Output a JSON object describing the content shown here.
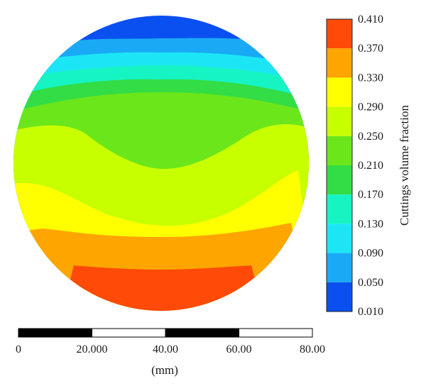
{
  "chart_data": {
    "type": "heatmap",
    "subtype": "circular-cross-section-contour",
    "title": "",
    "colorbar": {
      "label": "Cuttings volume fraction",
      "ticks": [
        "0.410",
        "0.370",
        "0.330",
        "0.290",
        "0.250",
        "0.210",
        "0.170",
        "0.130",
        "0.090",
        "0.050",
        "0.010"
      ],
      "colors": [
        "#ff4a08",
        "#ffa500",
        "#ffff00",
        "#c8ff00",
        "#6be61a",
        "#32dd45",
        "#16f4c4",
        "#1ce6f6",
        "#1aaaf5",
        "#0a50f0"
      ],
      "placement": "right"
    },
    "contour_bands": [
      {
        "range": [
          0.01,
          0.05
        ],
        "color": "#0a50f0"
      },
      {
        "range": [
          0.05,
          0.09
        ],
        "color": "#1aaaf5"
      },
      {
        "range": [
          0.09,
          0.13
        ],
        "color": "#1ce6f6"
      },
      {
        "range": [
          0.13,
          0.17
        ],
        "color": "#16f4c4"
      },
      {
        "range": [
          0.17,
          0.21
        ],
        "color": "#32dd45"
      },
      {
        "range": [
          0.21,
          0.25
        ],
        "color": "#6be61a"
      },
      {
        "range": [
          0.25,
          0.29
        ],
        "color": "#c8ff00"
      },
      {
        "range": [
          0.29,
          0.33
        ],
        "color": "#ffff00"
      },
      {
        "range": [
          0.33,
          0.37
        ],
        "color": "#ffa500"
      },
      {
        "range": [
          0.37,
          0.41
        ],
        "color": "#ff4a08"
      }
    ],
    "scale_bar": {
      "ticks": [
        "0",
        "20.000",
        "40.00",
        "60.00",
        "80.00"
      ],
      "unit_label": "(mm)",
      "range": [
        0,
        80
      ]
    }
  }
}
